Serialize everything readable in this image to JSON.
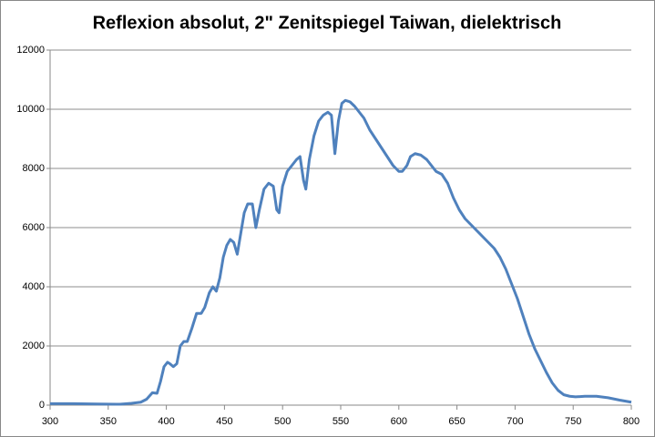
{
  "chart_data": {
    "type": "line",
    "title": "Reflexion absolut, 2\" Zenitspiegel Taiwan, dielektrisch",
    "x": [
      300,
      320,
      340,
      360,
      370,
      378,
      383,
      388,
      392,
      395,
      398,
      401,
      403,
      406,
      409,
      412,
      415,
      418,
      422,
      426,
      430,
      433,
      437,
      440,
      443,
      446,
      449,
      452,
      455,
      458,
      461,
      464,
      467,
      470,
      474,
      477,
      480,
      484,
      488,
      492,
      495,
      497,
      500,
      504,
      508,
      512,
      515,
      518,
      520,
      523,
      527,
      531,
      535,
      539,
      542,
      545,
      548,
      551,
      554,
      558,
      562,
      566,
      570,
      575,
      580,
      585,
      590,
      595,
      600,
      603,
      607,
      610,
      614,
      619,
      624,
      628,
      632,
      637,
      642,
      647,
      652,
      657,
      662,
      667,
      672,
      677,
      682,
      687,
      692,
      697,
      702,
      707,
      712,
      717,
      722,
      727,
      732,
      737,
      742,
      747,
      752,
      760,
      770,
      780,
      790,
      800
    ],
    "series": [
      {
        "name": "Reflexion",
        "color": "#4f81bd",
        "values": [
          50,
          50,
          40,
          30,
          60,
          100,
          200,
          420,
          400,
          800,
          1300,
          1450,
          1400,
          1300,
          1400,
          2000,
          2150,
          2150,
          2600,
          3100,
          3100,
          3300,
          3800,
          4000,
          3850,
          4300,
          5000,
          5400,
          5600,
          5500,
          5100,
          5800,
          6500,
          6800,
          6800,
          6000,
          6600,
          7300,
          7500,
          7400,
          6600,
          6500,
          7400,
          7900,
          8100,
          8300,
          8400,
          7600,
          7300,
          8300,
          9100,
          9600,
          9800,
          9900,
          9800,
          8500,
          9600,
          10200,
          10300,
          10250,
          10100,
          9900,
          9700,
          9300,
          9000,
          8700,
          8400,
          8100,
          7900,
          7900,
          8100,
          8400,
          8500,
          8450,
          8300,
          8100,
          7900,
          7800,
          7500,
          7000,
          6600,
          6300,
          6100,
          5900,
          5700,
          5500,
          5300,
          5000,
          4600,
          4100,
          3600,
          3000,
          2400,
          1900,
          1500,
          1100,
          750,
          500,
          350,
          300,
          280,
          300,
          300,
          250,
          170,
          100
        ]
      }
    ],
    "xlim": [
      300,
      800
    ],
    "xticks": [
      300,
      350,
      400,
      450,
      500,
      550,
      600,
      650,
      700,
      750,
      800
    ],
    "ylim": [
      0,
      12000
    ],
    "yticks": [
      0,
      2000,
      4000,
      6000,
      8000,
      10000,
      12000
    ],
    "grid": true
  }
}
